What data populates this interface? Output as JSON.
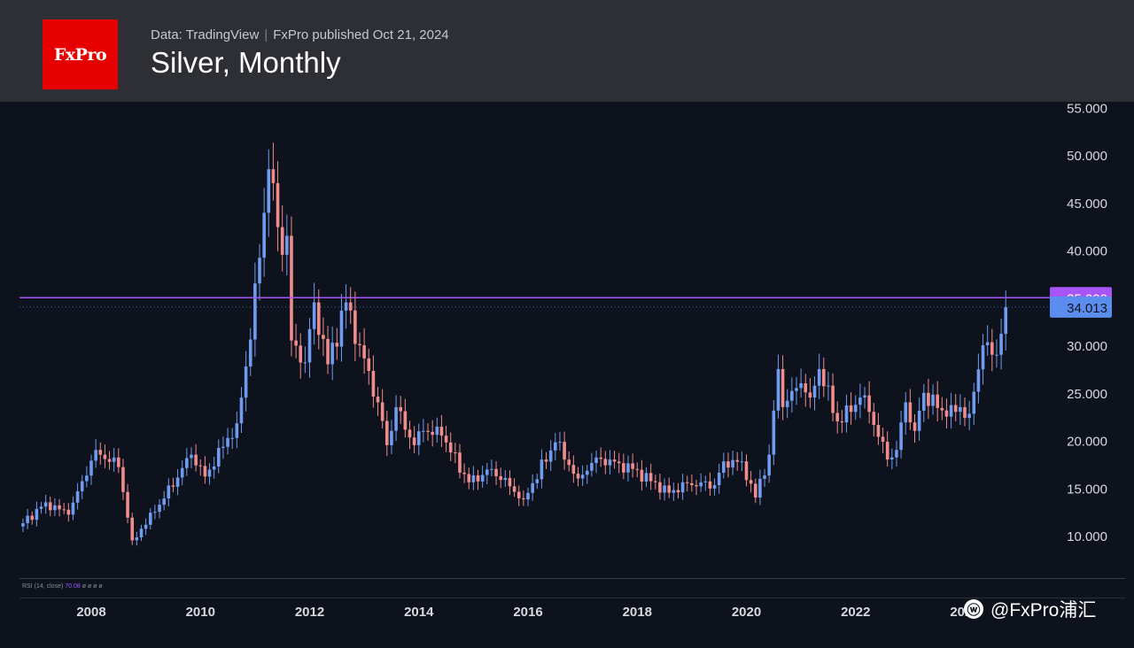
{
  "header": {
    "logo_text": "FxPro",
    "source": "Data: TradingView",
    "published": "FxPro published Oct 21, 2024",
    "title": "Silver, Monthly"
  },
  "rsi_label": "RSI (14, close)",
  "rsi_value": "70.08",
  "rsi_extra": "ø ø ø ø",
  "watermark": {
    "icon": "weibo-icon",
    "text": "@FxPro浦汇"
  },
  "chart_data": {
    "type": "candlestick",
    "interval": "monthly",
    "y_ticks": [
      "55.000",
      "50.000",
      "45.000",
      "40.000",
      "30.000",
      "25.000",
      "20.000",
      "15.000",
      "10.000"
    ],
    "x_ticks": [
      "2008",
      "2010",
      "2012",
      "2014",
      "2016",
      "2018",
      "2020",
      "2022",
      "2024"
    ],
    "ylim": [
      5,
      55.5
    ],
    "horizontal_line": {
      "value": 35.0,
      "label": "35.000",
      "color": "#a855f7"
    },
    "last_price": {
      "value": 34.013,
      "label": "34.013",
      "color": "#5b8def"
    },
    "colors": {
      "up": "#6f9cf0",
      "down": "#f08c8c"
    },
    "anchors": [
      [
        "2006-10",
        11.3
      ],
      [
        "2007-03",
        13.5
      ],
      [
        "2007-08",
        12.2
      ],
      [
        "2008-02",
        19.0
      ],
      [
        "2008-07",
        17.2
      ],
      [
        "2008-10",
        9.5
      ],
      [
        "2009-03",
        12.5
      ],
      [
        "2009-11",
        18.5
      ],
      [
        "2010-02",
        16.2
      ],
      [
        "2010-09",
        21.8
      ],
      [
        "2010-12",
        30.6
      ],
      [
        "2011-04",
        48.5
      ],
      [
        "2011-07",
        39.5
      ],
      [
        "2011-08",
        41.5
      ],
      [
        "2011-09",
        30.5
      ],
      [
        "2011-12",
        28.2
      ],
      [
        "2012-02",
        34.5
      ],
      [
        "2012-05",
        28.0
      ],
      [
        "2012-09",
        34.5
      ],
      [
        "2012-12",
        30.0
      ],
      [
        "2013-04",
        24.0
      ],
      [
        "2013-06",
        19.5
      ],
      [
        "2013-08",
        23.5
      ],
      [
        "2013-12",
        19.5
      ],
      [
        "2014-02",
        21.0
      ],
      [
        "2014-06",
        20.5
      ],
      [
        "2014-12",
        15.6
      ],
      [
        "2015-05",
        17.0
      ],
      [
        "2015-12",
        13.8
      ],
      [
        "2016-07",
        19.8
      ],
      [
        "2016-12",
        16.0
      ],
      [
        "2017-04",
        18.2
      ],
      [
        "2017-12",
        17.0
      ],
      [
        "2018-08",
        14.5
      ],
      [
        "2018-12",
        15.5
      ],
      [
        "2019-06",
        15.3
      ],
      [
        "2019-08",
        17.8
      ],
      [
        "2019-12",
        17.8
      ],
      [
        "2020-03",
        14.0
      ],
      [
        "2020-06",
        18.5
      ],
      [
        "2020-08",
        27.5
      ],
      [
        "2020-09",
        23.5
      ],
      [
        "2021-01",
        26.0
      ],
      [
        "2021-03",
        24.5
      ],
      [
        "2021-05",
        27.5
      ],
      [
        "2021-09",
        22.0
      ],
      [
        "2021-12",
        23.0
      ],
      [
        "2022-02",
        24.5
      ],
      [
        "2022-04",
        23.0
      ],
      [
        "2022-08",
        18.0
      ],
      [
        "2022-10",
        19.0
      ],
      [
        "2022-12",
        24.0
      ],
      [
        "2023-02",
        21.0
      ],
      [
        "2023-04",
        25.0
      ],
      [
        "2023-09",
        22.5
      ],
      [
        "2023-12",
        23.5
      ],
      [
        "2024-02",
        22.8
      ],
      [
        "2024-05",
        30.0
      ],
      [
        "2024-07",
        29.0
      ],
      [
        "2024-08",
        29.0
      ],
      [
        "2024-09",
        31.2
      ],
      [
        "2024-10",
        34.0
      ]
    ]
  }
}
